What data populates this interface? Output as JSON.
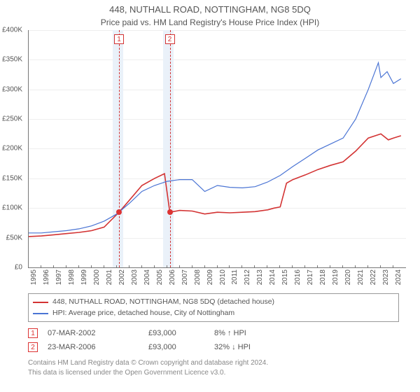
{
  "title": "448, NUTHALL ROAD, NOTTINGHAM, NG8 5DQ",
  "subtitle": "Price paid vs. HM Land Registry's House Price Index (HPI)",
  "chart": {
    "type": "line",
    "background_color": "#ffffff",
    "grid_color": "#eeeeee",
    "axis_color": "#777777",
    "text_color": "#555555",
    "tick_fontsize": 10,
    "x_years": [
      1995,
      1996,
      1997,
      1998,
      1999,
      2000,
      2001,
      2002,
      2003,
      2004,
      2005,
      2006,
      2007,
      2008,
      2009,
      2010,
      2011,
      2012,
      2013,
      2014,
      2015,
      2016,
      2017,
      2018,
      2019,
      2020,
      2021,
      2022,
      2023,
      2024
    ],
    "x_min": 1995,
    "x_max": 2025,
    "y_min": 0,
    "y_max": 400,
    "y_ticks": [
      0,
      50,
      100,
      150,
      200,
      250,
      300,
      350,
      400
    ],
    "y_tick_labels": [
      "£0",
      "£50K",
      "£100K",
      "£150K",
      "£200K",
      "£250K",
      "£300K",
      "£350K",
      "£400K"
    ],
    "shade_bands": [
      {
        "from": 2001.7,
        "to": 2002.5,
        "color": "#eaf1f9"
      },
      {
        "from": 2005.7,
        "to": 2006.5,
        "color": "#eaf1f9"
      }
    ],
    "markers": [
      {
        "id": "1",
        "x": 2002.18,
        "y": 93,
        "line_color": "#d33333",
        "box_color": "#d33333"
      },
      {
        "id": "2",
        "x": 2006.22,
        "y": 93,
        "line_color": "#d33333",
        "box_color": "#d33333"
      }
    ],
    "series": [
      {
        "name": "price_paid",
        "label": "448, NUTHALL ROAD, NOTTINGHAM, NG8 5DQ (detached house)",
        "color": "#d33333",
        "line_width": 1.6,
        "points": [
          [
            1995,
            52
          ],
          [
            1996,
            53
          ],
          [
            1997,
            55
          ],
          [
            1998,
            57
          ],
          [
            1999,
            59
          ],
          [
            2000,
            62
          ],
          [
            2001,
            68
          ],
          [
            2002.18,
            93
          ],
          [
            2003,
            113
          ],
          [
            2004,
            138
          ],
          [
            2005,
            150
          ],
          [
            2005.8,
            158
          ],
          [
            2006.22,
            93
          ],
          [
            2007,
            96
          ],
          [
            2008,
            95
          ],
          [
            2009,
            90
          ],
          [
            2010,
            93
          ],
          [
            2011,
            92
          ],
          [
            2012,
            93
          ],
          [
            2013,
            94
          ],
          [
            2014,
            97
          ],
          [
            2014.5,
            100
          ],
          [
            2015,
            102
          ],
          [
            2015.5,
            142
          ],
          [
            2016,
            148
          ],
          [
            2017,
            156
          ],
          [
            2018,
            165
          ],
          [
            2019,
            172
          ],
          [
            2020,
            178
          ],
          [
            2021,
            196
          ],
          [
            2022,
            218
          ],
          [
            2023,
            225
          ],
          [
            2023.6,
            215
          ],
          [
            2024,
            218
          ],
          [
            2024.6,
            222
          ]
        ]
      },
      {
        "name": "hpi",
        "label": "HPI: Average price, detached house, City of Nottingham",
        "color": "#4a74d4",
        "line_width": 1.2,
        "points": [
          [
            1995,
            58
          ],
          [
            1996,
            58
          ],
          [
            1997,
            60
          ],
          [
            1998,
            62
          ],
          [
            1999,
            65
          ],
          [
            2000,
            70
          ],
          [
            2001,
            78
          ],
          [
            2002,
            90
          ],
          [
            2003,
            108
          ],
          [
            2004,
            128
          ],
          [
            2005,
            138
          ],
          [
            2006,
            145
          ],
          [
            2007,
            148
          ],
          [
            2008,
            148
          ],
          [
            2008.8,
            132
          ],
          [
            2009,
            128
          ],
          [
            2010,
            138
          ],
          [
            2011,
            135
          ],
          [
            2012,
            134
          ],
          [
            2013,
            136
          ],
          [
            2014,
            144
          ],
          [
            2015,
            155
          ],
          [
            2016,
            170
          ],
          [
            2017,
            184
          ],
          [
            2018,
            198
          ],
          [
            2019,
            208
          ],
          [
            2020,
            218
          ],
          [
            2021,
            250
          ],
          [
            2022,
            300
          ],
          [
            2022.8,
            345
          ],
          [
            2023,
            320
          ],
          [
            2023.5,
            330
          ],
          [
            2024,
            310
          ],
          [
            2024.6,
            318
          ]
        ]
      }
    ]
  },
  "legend": {
    "border_color": "#999999",
    "items": [
      {
        "color": "#d33333",
        "label": "448, NUTHALL ROAD, NOTTINGHAM, NG8 5DQ (detached house)"
      },
      {
        "color": "#4a74d4",
        "label": "HPI: Average price, detached house, City of Nottingham"
      }
    ]
  },
  "annotations": [
    {
      "id": "1",
      "date": "07-MAR-2002",
      "price": "£93,000",
      "delta": "8% ↑ HPI"
    },
    {
      "id": "2",
      "date": "23-MAR-2006",
      "price": "£93,000",
      "delta": "32% ↓ HPI"
    }
  ],
  "attribution": {
    "line1": "Contains HM Land Registry data © Crown copyright and database right 2024.",
    "line2": "This data is licensed under the Open Government Licence v3.0."
  }
}
